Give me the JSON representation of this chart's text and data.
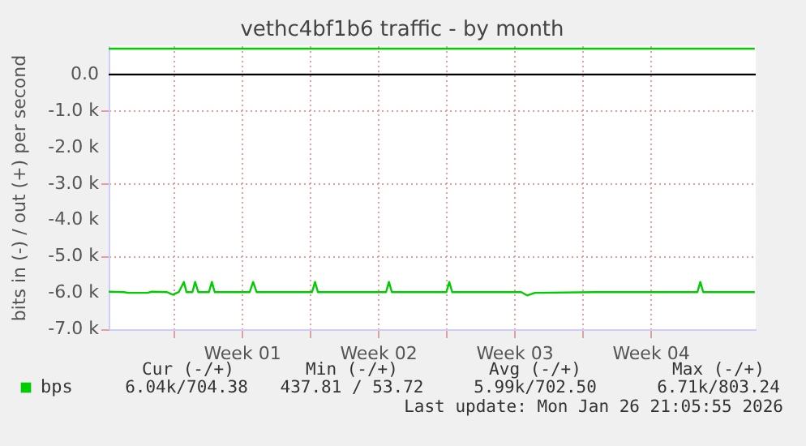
{
  "chart_data": {
    "type": "line",
    "title": "vethc4bf1b6 traffic - by month",
    "ylabel": "bits in (-) / out (+) per second",
    "xlim": [
      "2025-12-25T16:00",
      "2026-01-27T22:00"
    ],
    "ylim": [
      -7000,
      800
    ],
    "xticks": [
      {
        "value": "2025-12-29T00:00",
        "label": null
      },
      {
        "value": "2026-01-01T12:00",
        "label": "Week 01"
      },
      {
        "value": "2026-01-05T00:00",
        "label": null
      },
      {
        "value": "2026-01-08T12:00",
        "label": "Week 02"
      },
      {
        "value": "2026-01-12T00:00",
        "label": null
      },
      {
        "value": "2026-01-15T12:00",
        "label": "Week 03"
      },
      {
        "value": "2026-01-19T00:00",
        "label": null
      },
      {
        "value": "2026-01-22T12:00",
        "label": "Week 04"
      }
    ],
    "yticks": [
      {
        "value": 0,
        "label": "0.0"
      },
      {
        "value": -1000,
        "label": "-1.0 k"
      },
      {
        "value": -2000,
        "label": "-2.0 k"
      },
      {
        "value": -3000,
        "label": "-3.0 k"
      },
      {
        "value": -4000,
        "label": "-4.0 k"
      },
      {
        "value": -5000,
        "label": "-5.0 k"
      },
      {
        "value": -6000,
        "label": "-6.0 k"
      },
      {
        "value": -7000,
        "label": "-7.0 k"
      }
    ],
    "grid": true,
    "legend": "bottom left",
    "series": [
      {
        "name": "bps",
        "color": "#00cc00",
        "x": [
          "2025-12-25T16:00",
          "2025-12-26T11:00",
          "2025-12-26T16:00",
          "2025-12-27T16:00",
          "2025-12-27T21:00",
          "2025-12-28T16:00",
          "2025-12-28T23:00",
          "2025-12-29T06:30",
          "2025-12-29T12:45",
          "2025-12-29T16:00",
          "2025-12-29T23:15",
          "2025-12-30T02:40",
          "2025-12-30T06:30",
          "2025-12-30T19:40",
          "2025-12-30T23:15",
          "2025-12-31T02:50",
          "2026-01-01T22:00",
          "2026-01-02T02:10",
          "2026-01-02T06:30",
          "2026-01-05T02:50",
          "2026-01-05T06:30",
          "2026-01-05T10:05",
          "2026-01-08T22:05",
          "2026-01-09T01:40",
          "2026-01-09T05:15",
          "2026-01-12T00:30",
          "2026-01-12T04:05",
          "2026-01-12T07:40",
          "2026-01-15T20:50",
          "2026-01-16T04:05",
          "2026-01-16T13:40",
          "2026-01-19T16:05",
          "2026-01-24T22:05",
          "2026-01-25T01:40",
          "2026-01-25T05:15",
          "2026-01-27T20:50"
        ],
        "values": [
          -5970,
          -5980,
          -6000,
          -6000,
          -5970,
          -5980,
          -6050,
          -5980,
          -5700,
          -5980,
          -5980,
          -5700,
          -5980,
          -5980,
          -5700,
          -5980,
          -5980,
          -5700,
          -5980,
          -5980,
          -5700,
          -5980,
          -5980,
          -5700,
          -5980,
          -5980,
          -5700,
          -5980,
          -5980,
          -6070,
          -6000,
          -5980,
          -5980,
          -5700,
          -5980,
          -5980
        ]
      },
      {
        "color": "#00cc00",
        "x": [
          "2025-12-25T16:00",
          "2026-01-05T00:00",
          "2026-01-15T00:00",
          "2026-01-27T20:50"
        ],
        "values": [
          710,
          710,
          710,
          710
        ]
      }
    ],
    "ref_lines": [
      {
        "axis": "y",
        "value": 0,
        "color": "#000000"
      }
    ],
    "annotations": [
      "Cur (-/+)",
      "Min (-/+)",
      "Avg (-/+)",
      "Max (-/+)",
      "6.04k/704.38",
      "437.81 / 53.72",
      "5.99k/702.50",
      "6.71k/803.24",
      "Last update: Mon Jan 26 21:05:55 2026"
    ]
  }
}
